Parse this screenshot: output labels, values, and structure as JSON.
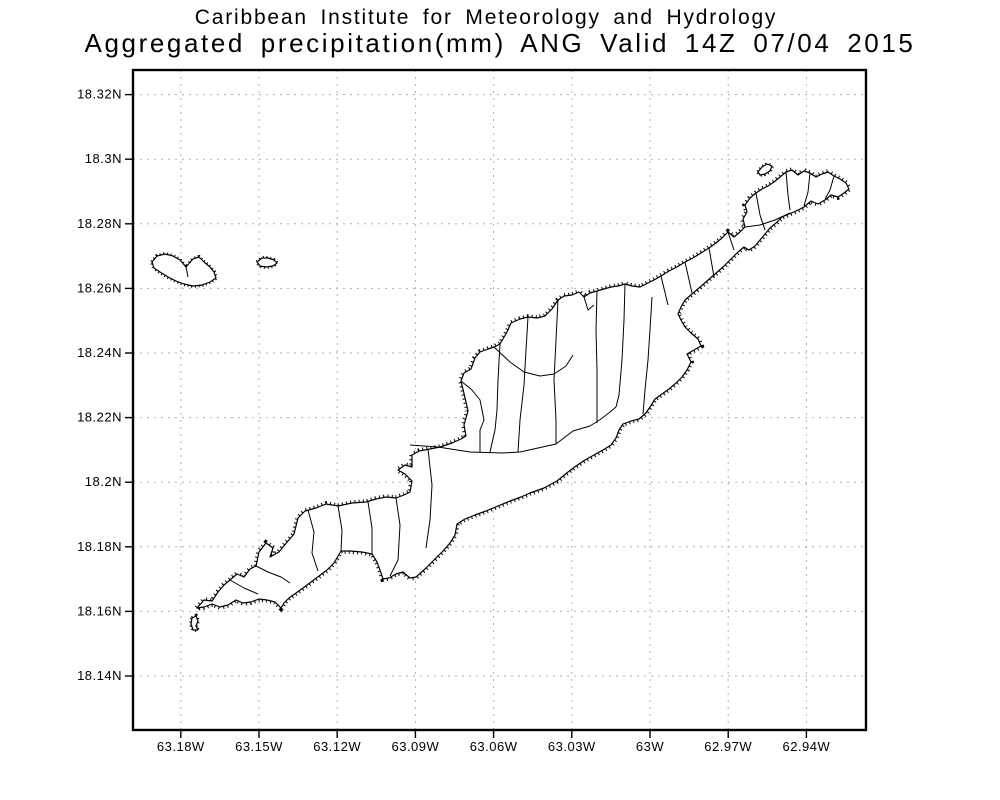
{
  "title": {
    "line1": "Caribbean Institute for Meteorology and Hydrology",
    "line2": "Aggregated precipitation(mm) ANG Valid 14Z 07/04 2015"
  },
  "map": {
    "type": "geographic-outline-map",
    "region_code": "ANG",
    "variable": "Aggregated precipitation(mm)",
    "valid_time": "14Z 07/04 2015",
    "lat_tick_labels": [
      "18.32N",
      "18.3N",
      "18.28N",
      "18.26N",
      "18.24N",
      "18.22N",
      "18.2N",
      "18.18N",
      "18.16N",
      "18.14N"
    ],
    "lon_tick_labels": [
      "63.18W",
      "63.15W",
      "63.12W",
      "63.09W",
      "63.06W",
      "63.03W",
      "63W",
      "62.97W",
      "62.94W"
    ],
    "colors": {
      "coastline": "#000000",
      "grid": "#b0b0b0",
      "frame": "#000000",
      "background": "#ffffff"
    }
  }
}
